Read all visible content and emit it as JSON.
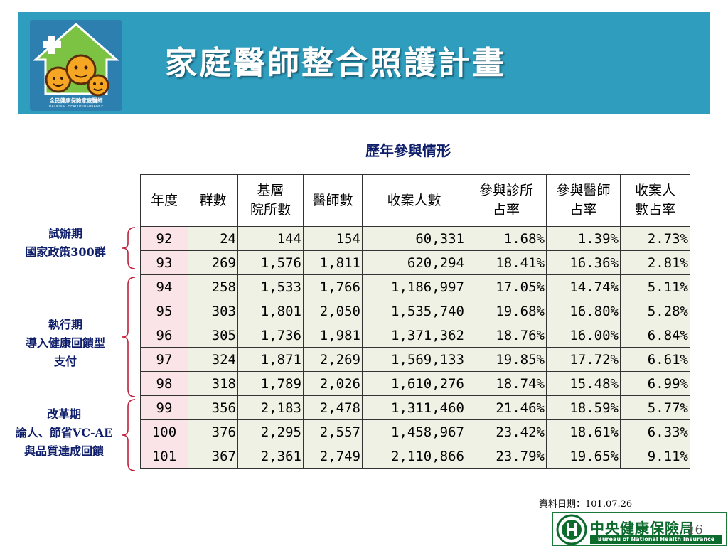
{
  "header": {
    "title": "家庭醫師整合照護計畫",
    "logo_text": "全民健康保險家庭醫師",
    "logo_subtext": "NATIONAL HEALTH INSURANCE"
  },
  "table_title": "歷年參與情形",
  "table": {
    "headers": [
      "年度",
      "群數",
      "基層\n院所數",
      "醫師數",
      "收案人數",
      "參與診所\n占率",
      "參與醫師\n占率",
      "收案人\n數占率"
    ],
    "rows": [
      [
        "92",
        "24",
        "144",
        "154",
        "60,331",
        "1.68%",
        "1.39%",
        "2.73%"
      ],
      [
        "93",
        "269",
        "1,576",
        "1,811",
        "620,294",
        "18.41%",
        "16.36%",
        "2.81%"
      ],
      [
        "94",
        "258",
        "1,533",
        "1,766",
        "1,186,997",
        "17.05%",
        "14.74%",
        "5.11%"
      ],
      [
        "95",
        "303",
        "1,801",
        "2,050",
        "1,535,740",
        "19.68%",
        "16.80%",
        "5.28%"
      ],
      [
        "96",
        "305",
        "1,736",
        "1,981",
        "1,371,362",
        "18.76%",
        "16.00%",
        "6.84%"
      ],
      [
        "97",
        "324",
        "1,871",
        "2,269",
        "1,569,133",
        "19.85%",
        "17.72%",
        "6.61%"
      ],
      [
        "98",
        "318",
        "1,789",
        "2,026",
        "1,610,276",
        "18.74%",
        "15.48%",
        "6.99%"
      ],
      [
        "99",
        "356",
        "2,183",
        "2,478",
        "1,311,460",
        "21.46%",
        "18.59%",
        "5.77%"
      ],
      [
        "100",
        "376",
        "2,295",
        "2,557",
        "1,458,967",
        "23.42%",
        "18.61%",
        "6.33%"
      ],
      [
        "101",
        "367",
        "2,361",
        "2,749",
        "2,110,866",
        "23.79%",
        "19.65%",
        "9.11%"
      ]
    ]
  },
  "phases": [
    {
      "lines": [
        "試辦期",
        "國家政策300群"
      ]
    },
    {
      "lines": [
        "執行期",
        "導入健康回饋型",
        "支付"
      ]
    },
    {
      "lines": [
        "改革期",
        "論人、節省VC-AE",
        "與品質達成回饋"
      ]
    }
  ],
  "footer": {
    "data_date": "資料日期：101.07.26",
    "page_number": "16",
    "agency_name": "中央健康保險局",
    "agency_english": "Bureau of National Health Insurance"
  },
  "colors": {
    "banner": "#2f9dbd",
    "year_cell": "#fbe4e8",
    "data_cell": "#eef1e3",
    "phase_text": "#0f1e6a",
    "agency_green": "#0d6b2e"
  }
}
